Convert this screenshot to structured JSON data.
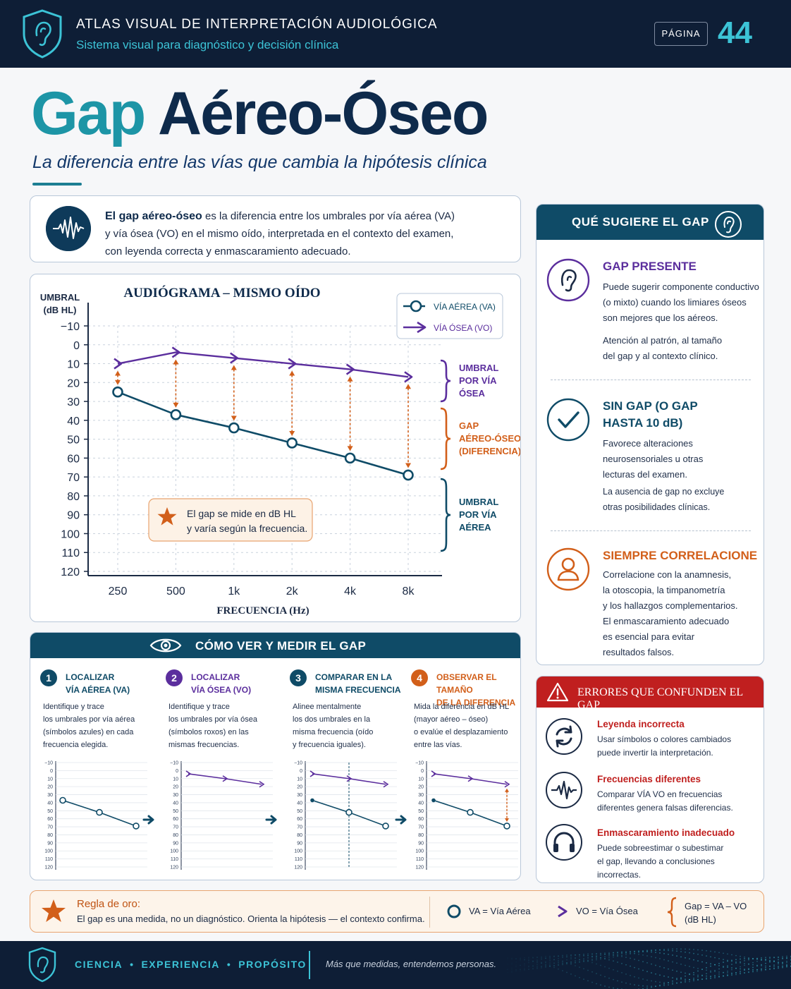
{
  "header": {
    "title": "ATLAS VISUAL DE INTERPRETACIÓN AUDIOLÓGICA",
    "subtitle": "Sistema visual para diagnóstico y decisión clínica",
    "page_label": "PÁGINA",
    "page_number": "44"
  },
  "title": {
    "part1": "Gap",
    "part2": "Aéreo-Óseo",
    "subtitle": "La diferencia entre las vías que cambia la hipótesis clínica"
  },
  "definition": {
    "lead": "El gap aéreo-óseo",
    "line1": " es la diferencia entre los umbrales por vía aérea (VA)",
    "line2": "y vía ósea (VO) en el mismo oído, interpretada en el contexto del examen,",
    "line3": "con leyenda correcta y enmascaramiento adecuado."
  },
  "chart_data": {
    "type": "line",
    "title": "AUDIÓGRAMA – MISMO OÍDO",
    "xlabel": "FRECUENCIA (Hz)",
    "ylabel_line1": "UMBRAL",
    "ylabel_line2": "(dB HL)",
    "categories": [
      "250",
      "500",
      "1k",
      "2k",
      "4k",
      "8k"
    ],
    "y_ticks": [
      "−10",
      "0",
      "10",
      "20",
      "30",
      "40",
      "50",
      "60",
      "70",
      "80",
      "90",
      "100",
      "110",
      "120"
    ],
    "ylim": [
      -10,
      120
    ],
    "y_inverted": true,
    "grid": true,
    "legend_position": "top-right",
    "series": [
      {
        "name": "VÍA AÉREA (VA)",
        "symbol": "circle",
        "color": "#0f4b67",
        "values": [
          25,
          37,
          44,
          52,
          60,
          69
        ]
      },
      {
        "name": "VÍA ÓSEA (VO)",
        "symbol": ">",
        "color": "#5b2e9d",
        "values": [
          10,
          4,
          7,
          10,
          13,
          17
        ]
      }
    ],
    "brackets": [
      {
        "line1": "UMBRAL",
        "line2": "POR VÍA",
        "line3": "ÓSEA",
        "color": "#5b2e9d"
      },
      {
        "line1": "GAP",
        "line2": "AÉREO-ÓSEO",
        "line3": "(DIFERENCIA)",
        "color": "#d25f1a"
      },
      {
        "line1": "UMBRAL",
        "line2": "POR VÍA",
        "line3": "AÉREA",
        "color": "#0f4b67"
      }
    ],
    "note_line1": "El gap se mide en dB HL",
    "note_line2": "y varía según la frecuencia."
  },
  "suggest": {
    "title": "QUÉ SUGIERE EL GAP",
    "items": [
      {
        "heading1": "GAP PRESENTE",
        "heading2": "",
        "color": "#5b2e9d",
        "lines": [
          "Puede sugerir componente conductivo",
          "(o mixto) cuando los limiares óseos",
          "son mejores que los aéreos."
        ],
        "lines2": [
          "Atención al patrón, al tamaño",
          "del gap y al contexto clínico."
        ]
      },
      {
        "heading1": "SIN GAP (O GAP",
        "heading2": "HASTA 10 dB)",
        "color": "#0f4b67",
        "lines": [
          "Favorece alteraciones",
          "neurosensoriales u otras",
          "lecturas del examen."
        ],
        "lines2": [
          "La ausencia de gap no excluye",
          "otras posibilidades clínicas."
        ]
      },
      {
        "heading1": "SIEMPRE CORRELACIONE",
        "heading2": "",
        "color": "#d25f1a",
        "lines": [
          "Correlacione con la anamnesis,",
          "la otoscopia, la timpanometría",
          "y los hallazgos complementarios."
        ],
        "lines2": [
          "El enmascaramiento adecuado",
          "es esencial para evitar",
          "resultados falsos."
        ]
      }
    ]
  },
  "errors": {
    "title": "ERRORES QUE CONFUNDEN EL GAP",
    "items": [
      {
        "heading": "Leyenda incorrecta",
        "line1": "Usar símbolos o colores cambiados",
        "line2": "puede invertir la interpretación.",
        "line3": ""
      },
      {
        "heading": "Frecuencias diferentes",
        "line1": "Comparar VÍA VO en frecuencias",
        "line2": "diferentes genera falsas diferencias.",
        "line3": ""
      },
      {
        "heading": "Enmascaramiento inadecuado",
        "line1": "Puede sobreestimar o subestimar",
        "line2": "el gap, llevando a conclusiones",
        "line3": "incorrectas."
      }
    ]
  },
  "howto": {
    "title": "CÓMO VER Y MEDIR EL GAP",
    "mini_ticks": [
      "−10",
      "0",
      "10",
      "20",
      "30",
      "40",
      "50",
      "60",
      "70",
      "80",
      "90",
      "100",
      "110",
      "120"
    ],
    "steps": [
      {
        "num": "1",
        "color": "#0f4b67",
        "h1": "LOCALIZAR",
        "h2": "VÍA AÉREA (VA)",
        "lines": [
          "Identifique y trace",
          "los umbrales por vía aérea",
          "(símbolos azules) en cada",
          "frecuencia elegida."
        ]
      },
      {
        "num": "2",
        "color": "#5b2e9d",
        "h1": "LOCALIZAR",
        "h2": "VÍA ÓSEA (VO)",
        "lines": [
          "Identifique y trace",
          "los umbrales por vía ósea",
          "(símbolos roxos) en las",
          "mismas frecuencias."
        ]
      },
      {
        "num": "3",
        "color": "#0f4b67",
        "h1": "COMPARAR EN LA",
        "h2": "MISMA FRECUENCIA",
        "lines": [
          "Alinee mentalmente",
          "los dos umbrales en la",
          "misma frecuencia (oído",
          "y frecuencia iguales)."
        ]
      },
      {
        "num": "4",
        "color": "#d25f1a",
        "h1": "OBSERVAR EL TAMAÑO",
        "h2": "DE LA DIFERENCIA",
        "lines": [
          "Mida la diferencia en dB HL",
          "(mayor aéreo – óseo)",
          "o evalúe el desplazamiento",
          "entre las vías."
        ]
      }
    ]
  },
  "rule": {
    "heading": "Regla de oro:",
    "text": "El gap es una medida, no un diagnóstico. Orienta la hipótesis — el contexto confirma.",
    "legend_va": "VA = Vía Aérea",
    "legend_vo": "VO = Vía Ósea",
    "formula1": "Gap = VA – VO",
    "formula2": "(dB HL)"
  },
  "footer": {
    "w1": "CIENCIA",
    "w2": "EXPERIENCIA",
    "w3": "PROPÓSITO",
    "slogan": "Más que medidas, entendemos personas."
  }
}
